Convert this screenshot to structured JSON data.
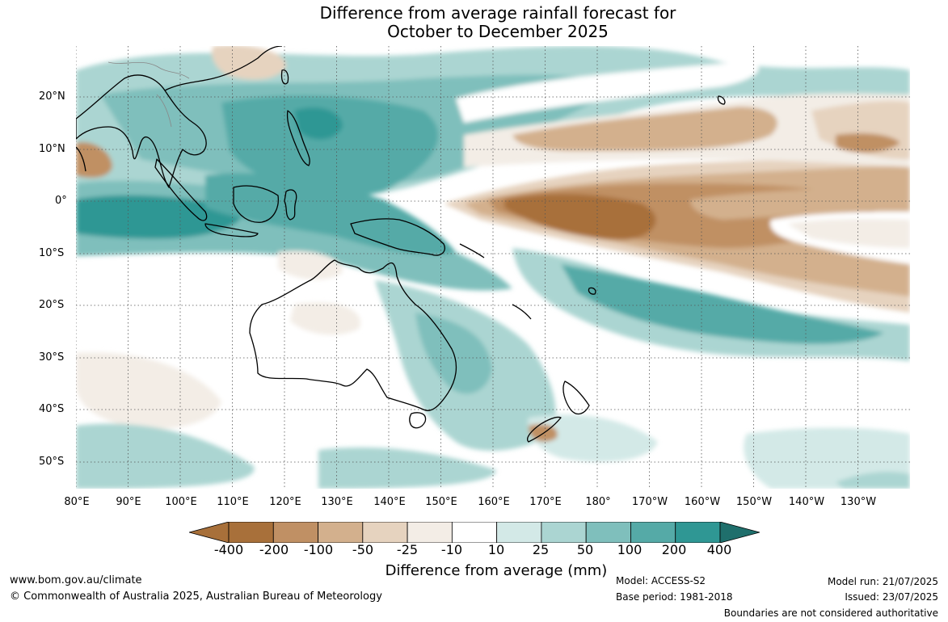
{
  "title_line1": "Difference from average rainfall forecast for",
  "title_line2": "October to December 2025",
  "lat_labels": [
    "20°N",
    "10°N",
    "0°",
    "10°S",
    "20°S",
    "30°S",
    "40°S",
    "50°S"
  ],
  "lon_labels": [
    "80°E",
    "90°E",
    "100°E",
    "110°E",
    "120°E",
    "130°E",
    "140°E",
    "150°E",
    "160°E",
    "170°E",
    "180°",
    "170°W",
    "160°W",
    "150°W",
    "140°W",
    "130°W"
  ],
  "colorbar": {
    "ticks": [
      "-400",
      "-200",
      "-100",
      "-50",
      "-25",
      "-10",
      "10",
      "25",
      "50",
      "100",
      "200",
      "400"
    ],
    "colors": [
      "#a8703a",
      "#c09064",
      "#d3b08d",
      "#e6d3bf",
      "#f3ede6",
      "#ffffff",
      "#d3e9e7",
      "#abd5d2",
      "#7fbfbc",
      "#55aaa7",
      "#2f9794",
      "#1f6f6c"
    ],
    "label": "Difference from average (mm)"
  },
  "footer": {
    "website": "www.bom.gov.au/climate",
    "copyright": "© Commonwealth of Australia 2025, Australian Bureau of Meteorology",
    "model": "Model: ACCESS-S2",
    "base_period": "Base period: 1981-2018",
    "model_run": "Model run: 21/07/2025",
    "issued": "Issued: 23/07/2025",
    "boundaries": "Boundaries are not considered authoritative"
  }
}
